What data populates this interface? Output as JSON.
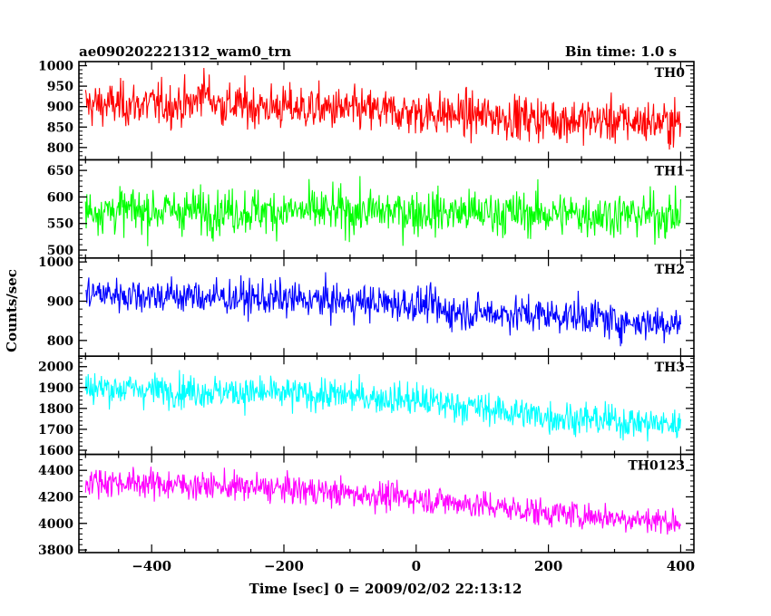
{
  "header": {
    "title": "ae090202221312_wam0_trn",
    "bin_time": "Bin time: 1.0 s"
  },
  "chart_data": {
    "type": "line",
    "xlabel": "Time [sec] 0 = 2009/02/02 22:13:12",
    "ylabel": "Counts/sec",
    "xlim": [
      -510,
      420
    ],
    "x_start": -500,
    "x_end": 400,
    "x_ticks": [
      -400,
      -200,
      0,
      200,
      400
    ],
    "x_tick_labels": [
      "−400",
      "−200",
      "0",
      "200",
      "400"
    ],
    "x_minor_step": 50,
    "panels": [
      {
        "name": "TH0",
        "color": "#ff0000",
        "ylim": [
          770,
          1010
        ],
        "y_ticks": [
          800,
          850,
          900,
          950,
          1000
        ],
        "y_minor_step": 10,
        "noise_sd": 38,
        "trend": [
          [
            -500,
            905
          ],
          [
            -335,
            905
          ],
          [
            -325,
            945
          ],
          [
            -300,
            905
          ],
          [
            0,
            885
          ],
          [
            200,
            870
          ],
          [
            400,
            860
          ]
        ]
      },
      {
        "name": "TH1",
        "color": "#00ff00",
        "ylim": [
          485,
          670
        ],
        "y_ticks": [
          500,
          550,
          600,
          650
        ],
        "y_minor_step": 10,
        "noise_sd": 30,
        "trend": [
          [
            -500,
            575
          ],
          [
            0,
            572
          ],
          [
            400,
            565
          ]
        ]
      },
      {
        "name": "TH2",
        "color": "#0000ff",
        "ylim": [
          760,
          1010
        ],
        "y_ticks": [
          800,
          900,
          1000
        ],
        "y_minor_step": 20,
        "noise_sd": 32,
        "trend": [
          [
            -500,
            920
          ],
          [
            -200,
            905
          ],
          [
            30,
            890
          ],
          [
            35,
            875
          ],
          [
            280,
            860
          ],
          [
            290,
            848
          ],
          [
            400,
            845
          ]
        ]
      },
      {
        "name": "TH3",
        "color": "#00ffff",
        "ylim": [
          1580,
          2050
        ],
        "y_ticks": [
          1600,
          1700,
          1800,
          1900,
          2000
        ],
        "y_minor_step": 20,
        "noise_sd": 55,
        "trend": [
          [
            -500,
            1900
          ],
          [
            -100,
            1860
          ],
          [
            0,
            1840
          ],
          [
            200,
            1760
          ],
          [
            400,
            1720
          ]
        ]
      },
      {
        "name": "TH0123",
        "color": "#ff00ff",
        "ylim": [
          3780,
          4520
        ],
        "y_ticks": [
          3800,
          4000,
          4200,
          4400
        ],
        "y_minor_step": 40,
        "noise_sd": 75,
        "trend": [
          [
            -500,
            4320
          ],
          [
            -200,
            4260
          ],
          [
            0,
            4190
          ],
          [
            200,
            4080
          ],
          [
            400,
            4010
          ]
        ]
      }
    ]
  }
}
